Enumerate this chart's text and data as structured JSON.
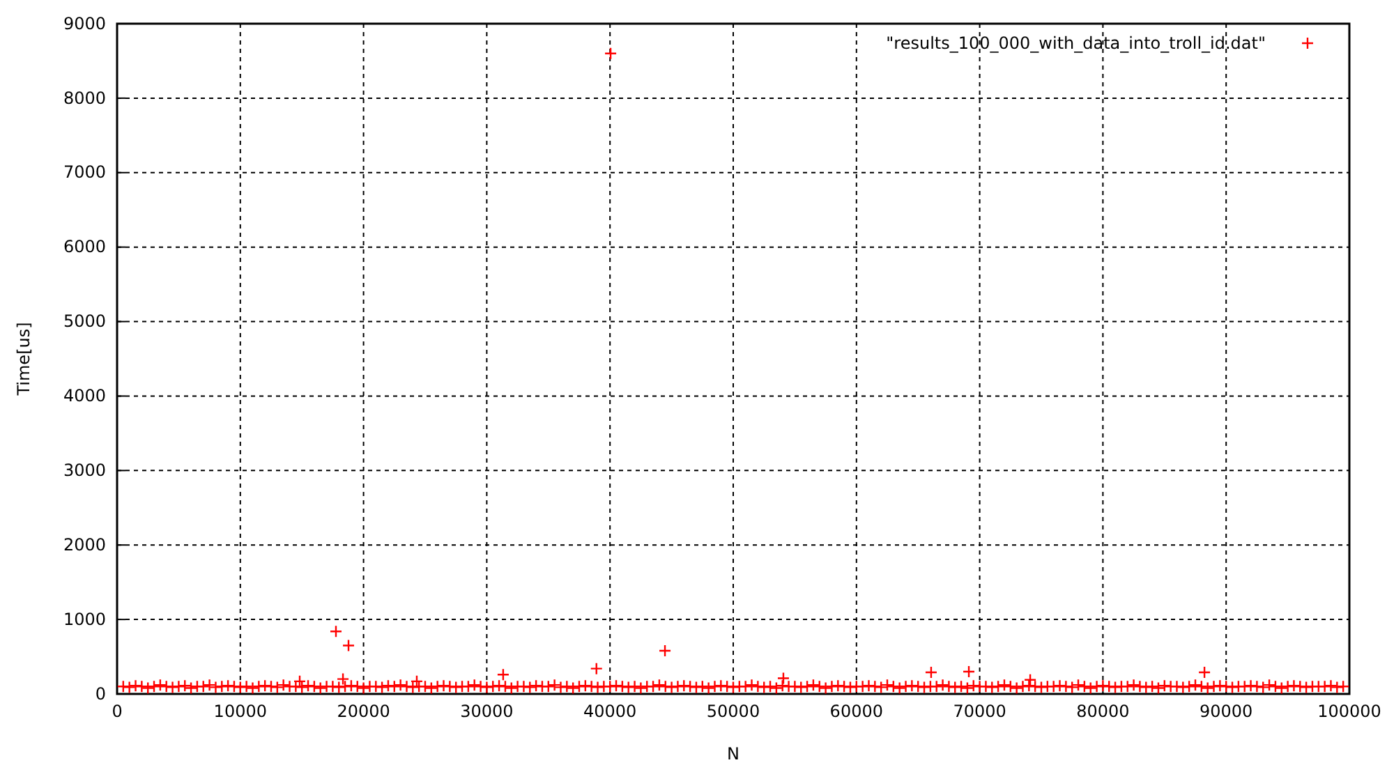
{
  "chart_data": {
    "type": "scatter",
    "xlabel": "N",
    "ylabel": "Time[us]",
    "xlim": [
      0,
      100000
    ],
    "ylim": [
      0,
      9000
    ],
    "xticks": [
      0,
      10000,
      20000,
      30000,
      40000,
      50000,
      60000,
      70000,
      80000,
      90000,
      100000
    ],
    "yticks": [
      0,
      1000,
      2000,
      3000,
      4000,
      5000,
      6000,
      7000,
      8000,
      9000
    ],
    "grid": true,
    "legend": "top right",
    "marker": "cross",
    "series": [
      {
        "name": "\"results_100_000_with_data_into_troll_id.dat\"",
        "color": "#ff0000",
        "x": [
          500,
          1000,
          1500,
          2000,
          2500,
          3000,
          3500,
          4000,
          4500,
          5000,
          5500,
          6000,
          6500,
          7000,
          7500,
          8000,
          8500,
          9000,
          9500,
          10000,
          10500,
          11000,
          11500,
          12000,
          12500,
          13000,
          13500,
          14000,
          14500,
          15000,
          15500,
          16000,
          16500,
          17000,
          17500,
          18000,
          18500,
          19000,
          19500,
          20000,
          20500,
          21000,
          21500,
          22000,
          22500,
          23000,
          23500,
          24000,
          24500,
          25000,
          25500,
          26000,
          26500,
          27000,
          27500,
          28000,
          28500,
          29000,
          29500,
          30000,
          30500,
          31000,
          31500,
          32000,
          32500,
          33000,
          33500,
          34000,
          34500,
          35000,
          35500,
          36000,
          36500,
          37000,
          37500,
          38000,
          38500,
          39000,
          39500,
          40000,
          40500,
          41000,
          41500,
          42000,
          42500,
          43000,
          43500,
          44000,
          44500,
          45000,
          45500,
          46000,
          46500,
          47000,
          47500,
          48000,
          48500,
          49000,
          49500,
          50000,
          50500,
          51000,
          51500,
          52000,
          52500,
          53000,
          53500,
          54000,
          54500,
          55000,
          55500,
          56000,
          56500,
          57000,
          57500,
          58000,
          58500,
          59000,
          59500,
          60000,
          60500,
          61000,
          61500,
          62000,
          62500,
          63000,
          63500,
          64000,
          64500,
          65000,
          65500,
          66000,
          66500,
          67000,
          67500,
          68000,
          68500,
          69000,
          69500,
          70000,
          70500,
          71000,
          71500,
          72000,
          72500,
          73000,
          73500,
          74000,
          74500,
          75000,
          75500,
          76000,
          76500,
          77000,
          77500,
          78000,
          78500,
          79000,
          79500,
          80000,
          80500,
          81000,
          81500,
          82000,
          82500,
          83000,
          83500,
          84000,
          84500,
          85000,
          85500,
          86000,
          86500,
          87000,
          87500,
          88000,
          88500,
          89000,
          89500,
          90000,
          90500,
          91000,
          91500,
          92000,
          92500,
          93000,
          93500,
          94000,
          94500,
          95000,
          95500,
          96000,
          96500,
          97000,
          97500,
          98000,
          98500,
          99000,
          99500,
          17760,
          18780,
          18330,
          14820,
          40050,
          44460,
          31330,
          38900,
          54070,
          66060,
          69120,
          74100,
          88240,
          24320
        ],
        "values": [
          100,
          90,
          110,
          100,
          80,
          100,
          120,
          100,
          90,
          100,
          110,
          80,
          100,
          100,
          120,
          90,
          100,
          110,
          100,
          90,
          100,
          80,
          100,
          110,
          100,
          90,
          120,
          100,
          100,
          90,
          110,
          100,
          80,
          100,
          100,
          90,
          100,
          110,
          100,
          80,
          100,
          100,
          90,
          110,
          100,
          120,
          100,
          90,
          100,
          100,
          80,
          100,
          110,
          100,
          90,
          100,
          100,
          120,
          100,
          90,
          100,
          110,
          100,
          80,
          100,
          100,
          90,
          110,
          100,
          100,
          120,
          90,
          100,
          80,
          100,
          110,
          100,
          90,
          100,
          100,
          110,
          100,
          90,
          100,
          80,
          100,
          100,
          120,
          100,
          90,
          100,
          110,
          100,
          90,
          100,
          80,
          100,
          110,
          100,
          90,
          100,
          100,
          120,
          100,
          90,
          100,
          80,
          110,
          100,
          100,
          90,
          100,
          120,
          100,
          80,
          100,
          110,
          100,
          90,
          100,
          100,
          110,
          100,
          90,
          120,
          100,
          80,
          100,
          110,
          100,
          90,
          100,
          100,
          120,
          100,
          90,
          100,
          80,
          110,
          100,
          100,
          90,
          100,
          120,
          100,
          80,
          100,
          110,
          100,
          90,
          100,
          100,
          110,
          100,
          90,
          120,
          100,
          80,
          100,
          110,
          100,
          90,
          100,
          100,
          120,
          100,
          90,
          100,
          80,
          110,
          100,
          100,
          90,
          100,
          120,
          100,
          80,
          100,
          110,
          100,
          90,
          100,
          100,
          110,
          100,
          90,
          120,
          100,
          80,
          100,
          110,
          100,
          90,
          100,
          100,
          100,
          110,
          90,
          100,
          840,
          650,
          200,
          170,
          8600,
          580,
          260,
          340,
          210,
          290,
          300,
          190,
          290,
          170
        ]
      }
    ]
  }
}
